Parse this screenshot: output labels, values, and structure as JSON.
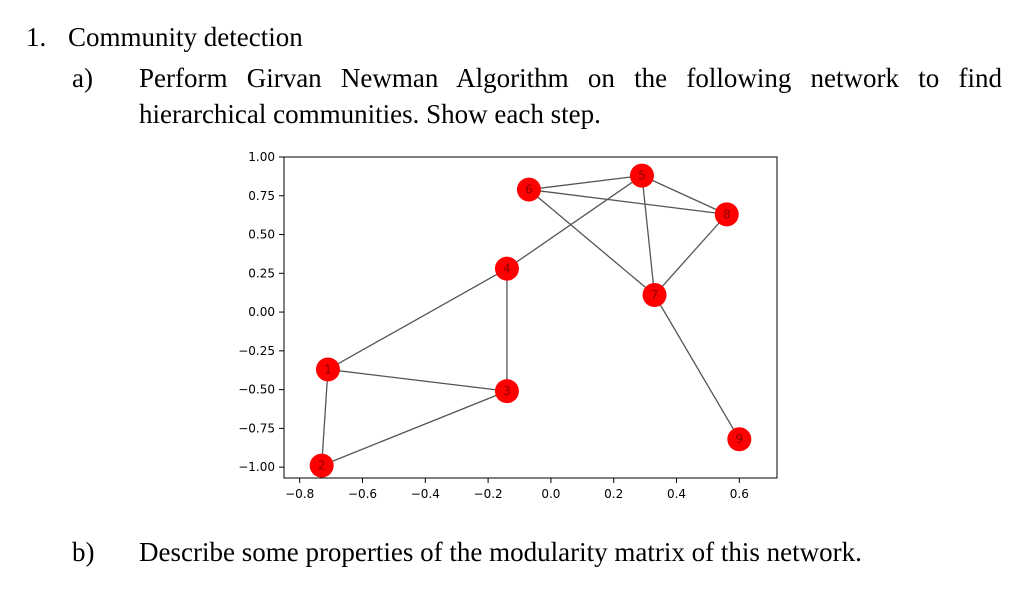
{
  "question": {
    "number": "1.",
    "title": "Community detection"
  },
  "part_a": {
    "label": "a)",
    "text": "Perform Girvan Newman Algorithm on the following network to find hierarchical communities. Show each step."
  },
  "part_b": {
    "label": "b)",
    "text": "Describe some properties of the modularity matrix of this network."
  },
  "chart_data": {
    "type": "scatter",
    "xlim": [
      -0.85,
      0.72
    ],
    "ylim": [
      -1.07,
      1.0
    ],
    "xticks": [
      -0.8,
      -0.6,
      -0.4,
      -0.2,
      0.0,
      0.2,
      0.4,
      0.6
    ],
    "xtick_labels": [
      "−0.8",
      "−0.6",
      "−0.4",
      "−0.2",
      "0.0",
      "0.2",
      "0.4",
      "0.6"
    ],
    "yticks": [
      1.0,
      0.75,
      0.5,
      0.25,
      0.0,
      -0.25,
      -0.5,
      -0.75,
      -1.0
    ],
    "ytick_labels": [
      "1.00",
      "0.75",
      "0.50",
      "0.25",
      "0.00",
      "−0.25",
      "−0.50",
      "−0.75",
      "−1.00"
    ],
    "grid": false,
    "node_color": "#ff0000",
    "edge_color": "#555555",
    "nodes": [
      {
        "id": "1",
        "x": -0.71,
        "y": -0.37
      },
      {
        "id": "2",
        "x": -0.73,
        "y": -0.99
      },
      {
        "id": "3",
        "x": -0.14,
        "y": -0.51
      },
      {
        "id": "4",
        "x": -0.14,
        "y": 0.28
      },
      {
        "id": "5",
        "x": 0.29,
        "y": 0.88
      },
      {
        "id": "6",
        "x": -0.07,
        "y": 0.79
      },
      {
        "id": "7",
        "x": 0.33,
        "y": 0.11
      },
      {
        "id": "8",
        "x": 0.56,
        "y": 0.63
      },
      {
        "id": "9",
        "x": 0.6,
        "y": -0.82
      }
    ],
    "edges": [
      [
        "1",
        "2"
      ],
      [
        "1",
        "3"
      ],
      [
        "1",
        "4"
      ],
      [
        "2",
        "3"
      ],
      [
        "3",
        "4"
      ],
      [
        "4",
        "5"
      ],
      [
        "5",
        "6"
      ],
      [
        "5",
        "7"
      ],
      [
        "5",
        "8"
      ],
      [
        "6",
        "7"
      ],
      [
        "6",
        "8"
      ],
      [
        "7",
        "8"
      ],
      [
        "7",
        "9"
      ]
    ]
  }
}
